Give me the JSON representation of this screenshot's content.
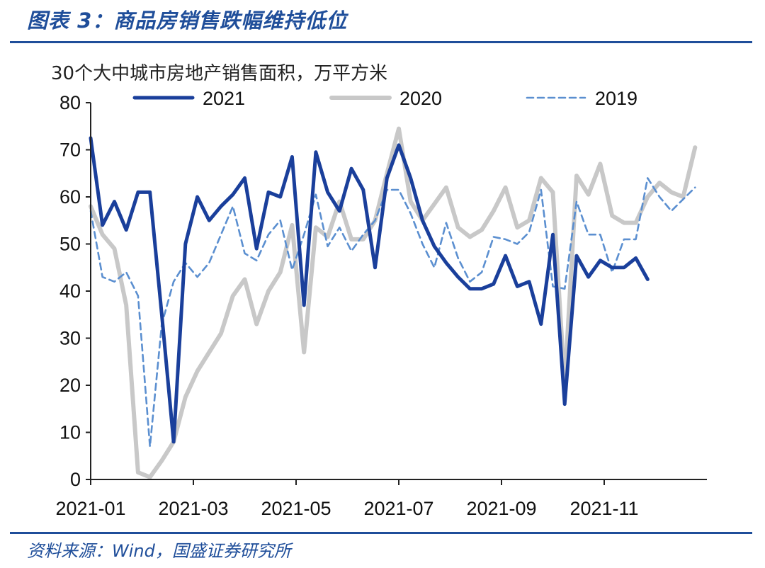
{
  "header": {
    "title": "图表 3：商品房销售跌幅维持低位"
  },
  "footer": {
    "source": "资料来源：Wind，国盛证券研究所"
  },
  "colors": {
    "brand": "#1f4e9a",
    "s2021": "#1a3f9b",
    "s2020": "#c8c8c8",
    "s2019": "#5b8fd0"
  },
  "chart_data": {
    "type": "line",
    "title": "",
    "ylabel": "30个大中城市房地产销售面积，万平方米",
    "xlabel": "",
    "ylim": [
      0,
      80
    ],
    "yticks": [
      0,
      10,
      20,
      30,
      40,
      50,
      60,
      70,
      80
    ],
    "xticks": [
      "2021-01",
      "2021-03",
      "2021-05",
      "2021-07",
      "2021-09",
      "2021-11"
    ],
    "legend": "top",
    "series": [
      {
        "name": "2021",
        "style": "solid-bold",
        "values": [
          72.5,
          54,
          59,
          53,
          61,
          61,
          35,
          8,
          50,
          60,
          55,
          58,
          60.5,
          64,
          49,
          61,
          60,
          68.5,
          37,
          69.5,
          61,
          57,
          66,
          61.5,
          45,
          64,
          71,
          64,
          55,
          49.5,
          46,
          43,
          40.5,
          40.5,
          41.5,
          47.5,
          41,
          42,
          33,
          52,
          16,
          47.5,
          43,
          46.5,
          45,
          45,
          47,
          42.5
        ]
      },
      {
        "name": "2020",
        "style": "solid-light",
        "values": [
          58,
          52,
          49,
          37,
          1.5,
          0.5,
          4,
          8,
          17.5,
          23,
          27,
          31,
          39,
          42.5,
          33,
          40,
          44,
          54,
          27,
          53.5,
          51.5,
          59,
          51,
          51,
          55,
          65,
          74.5,
          59,
          55,
          58.5,
          62,
          53.5,
          51.5,
          53,
          57,
          62,
          53.5,
          55,
          64,
          61,
          20,
          64.5,
          60.5,
          67,
          56,
          54.5,
          54.5,
          60,
          63,
          61,
          60,
          70.5
        ]
      },
      {
        "name": "2019",
        "style": "dashed",
        "values": [
          57,
          43,
          42,
          44,
          39,
          7,
          33,
          42,
          46,
          43,
          46,
          52,
          58,
          48,
          46.5,
          52,
          55,
          44.5,
          52,
          60.5,
          49.5,
          53.5,
          48.5,
          52,
          55,
          61.5,
          61.5,
          56.5,
          50,
          45,
          54.5,
          47,
          42,
          44,
          51.5,
          51,
          50,
          52.5,
          61.5,
          41,
          40.5,
          59,
          52,
          52,
          44,
          51,
          51,
          64,
          60,
          57,
          59.5,
          62
        ]
      }
    ]
  }
}
